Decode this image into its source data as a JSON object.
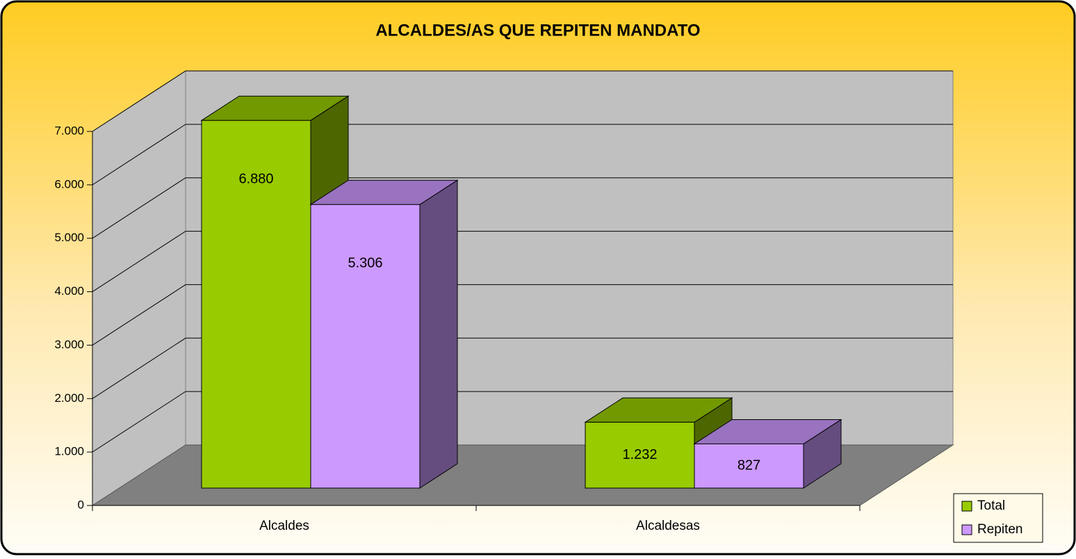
{
  "chart_data": {
    "type": "bar3d",
    "title": "ALCALDES/AS QUE REPITEN MANDATO",
    "categories": [
      "Alcaldes",
      "Alcaldesas"
    ],
    "series": [
      {
        "name": "Total",
        "color": "#99cc00",
        "values": [
          6880,
          1232
        ],
        "value_labels": [
          "6.880",
          "1.232"
        ]
      },
      {
        "name": "Repiten",
        "color": "#cc99ff",
        "values": [
          5306,
          827
        ],
        "value_labels": [
          "5.306",
          "827"
        ]
      }
    ],
    "ylim": [
      0,
      7000
    ],
    "yticks": [
      0,
      {
        "value": 1000,
        "label": "1.000"
      },
      {
        "value": 2000,
        "label": "2.000"
      },
      {
        "value": 3000,
        "label": "3.000"
      },
      {
        "value": 4000,
        "label": "4.000"
      },
      {
        "value": 5000,
        "label": "5.000"
      },
      {
        "value": 6000,
        "label": "6.000"
      },
      {
        "value": 7000,
        "label": "7.000"
      }
    ],
    "grid": true,
    "legend": "bottom-right"
  }
}
